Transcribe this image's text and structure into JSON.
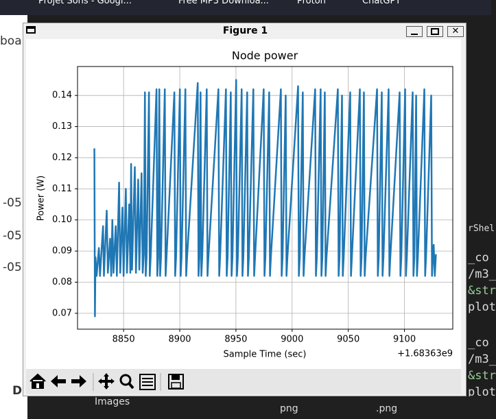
{
  "window": {
    "title": "Figure 1"
  },
  "background": {
    "bookmarks": [
      "Projet Sons - Googl...",
      "Free MP3 Downloa...",
      "Proton",
      "ChatGPT"
    ],
    "page_fragments": [
      "boar",
      "-05",
      "-05",
      "-05",
      "D"
    ],
    "editor_fragments": [
      "rShel",
      "_co",
      "/m3_",
      "&str",
      "plot",
      "_co",
      "/m3_",
      "&str",
      "plot"
    ],
    "explorer": [
      "Images",
      "png",
      ".png"
    ]
  },
  "chart_data": {
    "type": "line",
    "title": "Node power",
    "x_label": "Sample Time (sec)",
    "y_label": "Power (W)",
    "x_offset_label": "+1.68363e9",
    "xlim": [
      8809,
      9143
    ],
    "ylim": [
      0.0649,
      0.1493
    ],
    "xticks": [
      8850,
      8900,
      8950,
      9000,
      9050,
      9100
    ],
    "yticks": [
      0.07,
      0.08,
      0.09,
      {
        "value": 0.1,
        "label": "0.10"
      },
      0.11,
      0.12,
      0.13,
      0.14
    ],
    "grid": true,
    "x": [
      8824.0,
      8824.5,
      8825,
      8826,
      8828,
      8829,
      8831.7,
      8832.5,
      8835,
      8836,
      8838,
      8839,
      8840,
      8841,
      8843,
      8844,
      8846,
      8847,
      8849,
      8850,
      8852,
      8853,
      8855,
      8856,
      8856.7,
      8857.5,
      8860,
      8861,
      8863,
      8864,
      8866,
      8867,
      8868,
      8869,
      8869.7,
      8870.5,
      8872.6,
      8873.3,
      8874.1,
      8879.3,
      8880,
      8880.8,
      8881.8,
      8882.5,
      8883.3,
      8886.7,
      8887.4,
      8888.2,
      8895.2,
      8895.9,
      8896.7,
      8900.1,
      8900.8,
      8901.6,
      8905,
      8905.7,
      8906.5,
      8916,
      8916.7,
      8917.5,
      8918.5,
      8919.2,
      8920,
      8924,
      8924.7,
      8925.5,
      8934.4,
      8935.1,
      8935.9,
      8941.1,
      8941.8,
      8942.6,
      8945.4,
      8946.1,
      8946.9,
      8950.2,
      8950.9,
      8951.7,
      8955.1,
      8955.8,
      8956.6,
      8960,
      8960.7,
      8961.5,
      8965.5,
      8966.2,
      8967,
      8974.7,
      8975.4,
      8976.2,
      8979.6,
      8980.3,
      8981.1,
      8990,
      8990.7,
      8991.5,
      8994.3,
      8995,
      8995.8,
      9005.3,
      9006,
      9006.8,
      9009.5,
      9010.2,
      9011,
      9020.5,
      9021.2,
      9022,
      9025.4,
      9026.1,
      9026.9,
      9029.1,
      9029.8,
      9030.6,
      9040.7,
      9041.4,
      9042.2,
      9044.4,
      9045.1,
      9045.9,
      9051.7,
      9052.4,
      9053.2,
      9060.3,
      9061,
      9061.8,
      9063.9,
      9064.6,
      9065.4,
      9075.6,
      9076.3,
      9077.1,
      9079.8,
      9080.5,
      9081.3,
      9085.9,
      9086.6,
      9087.4,
      9095.7,
      9096.4,
      9097.2,
      9100.6,
      9101.3,
      9102.1,
      9107.3,
      9108,
      9108.8,
      9110.4,
      9111.1,
      9111.9,
      9117.7,
      9118.4,
      9119.2,
      9123.8,
      9124.5,
      9125.3,
      9126,
      9127,
      9128
    ],
    "series": [
      {
        "color": "#1f77b4",
        "values": [
          0.123,
          0.069,
          0.088,
          0.082,
          0.091,
          0.082,
          0.098,
          0.082,
          0.103,
          0.083,
          0.094,
          0.082,
          0.1,
          0.083,
          0.098,
          0.082,
          0.112,
          0.083,
          0.104,
          0.082,
          0.11,
          0.083,
          0.105,
          0.083,
          0.118,
          0.084,
          0.117,
          0.083,
          0.113,
          0.084,
          0.115,
          0.083,
          0.089,
          0.141,
          0.082,
          0.088,
          0.141,
          0.082,
          0.088,
          0.142,
          0.082,
          0.088,
          0.142,
          0.082,
          0.088,
          0.142,
          0.082,
          0.088,
          0.141,
          0.082,
          0.088,
          0.142,
          0.082,
          0.088,
          0.142,
          0.082,
          0.088,
          0.144,
          0.082,
          0.088,
          0.141,
          0.082,
          0.088,
          0.142,
          0.082,
          0.088,
          0.142,
          0.082,
          0.088,
          0.142,
          0.082,
          0.088,
          0.141,
          0.082,
          0.088,
          0.145,
          0.082,
          0.088,
          0.142,
          0.082,
          0.088,
          0.141,
          0.082,
          0.088,
          0.142,
          0.082,
          0.088,
          0.142,
          0.082,
          0.088,
          0.141,
          0.082,
          0.088,
          0.142,
          0.082,
          0.088,
          0.14,
          0.082,
          0.088,
          0.143,
          0.082,
          0.088,
          0.141,
          0.082,
          0.088,
          0.142,
          0.082,
          0.088,
          0.142,
          0.082,
          0.088,
          0.141,
          0.082,
          0.088,
          0.142,
          0.082,
          0.088,
          0.14,
          0.082,
          0.088,
          0.141,
          0.082,
          0.088,
          0.142,
          0.082,
          0.088,
          0.141,
          0.082,
          0.088,
          0.142,
          0.082,
          0.088,
          0.141,
          0.082,
          0.088,
          0.142,
          0.082,
          0.088,
          0.141,
          0.082,
          0.088,
          0.142,
          0.082,
          0.088,
          0.141,
          0.082,
          0.088,
          0.14,
          0.082,
          0.088,
          0.142,
          0.082,
          0.088,
          0.14,
          0.082,
          0.088,
          0.092,
          0.082,
          0.089
        ]
      }
    ]
  }
}
